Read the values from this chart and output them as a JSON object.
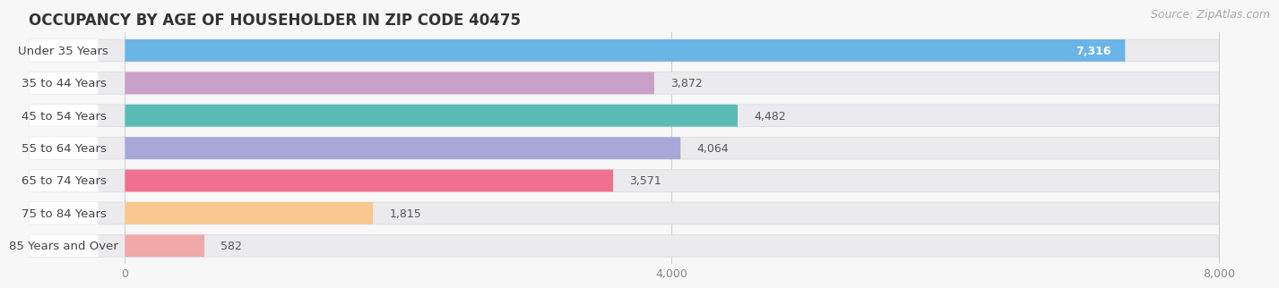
{
  "title": "OCCUPANCY BY AGE OF HOUSEHOLDER IN ZIP CODE 40475",
  "source": "Source: ZipAtlas.com",
  "categories": [
    "Under 35 Years",
    "35 to 44 Years",
    "45 to 54 Years",
    "55 to 64 Years",
    "65 to 74 Years",
    "75 to 84 Years",
    "85 Years and Over"
  ],
  "values": [
    7316,
    3872,
    4482,
    4064,
    3571,
    1815,
    582
  ],
  "bar_colors": [
    "#6ab4e8",
    "#c9a0c8",
    "#5bbcb4",
    "#a8a8d8",
    "#f07090",
    "#f8c890",
    "#f0a8a8"
  ],
  "label_bg_colors": [
    "#d0e8f8",
    "#e0d0e8",
    "#b0dcd8",
    "#d0d0e8",
    "#fcc0d0",
    "#fce0c0",
    "#f8d0d0"
  ],
  "background_color": "#f7f7f7",
  "bar_bg_color": "#ebebee",
  "xlim_max": 8000,
  "xticks": [
    0,
    4000,
    8000
  ],
  "title_fontsize": 12,
  "label_fontsize": 9.5,
  "value_fontsize": 9,
  "source_fontsize": 9
}
